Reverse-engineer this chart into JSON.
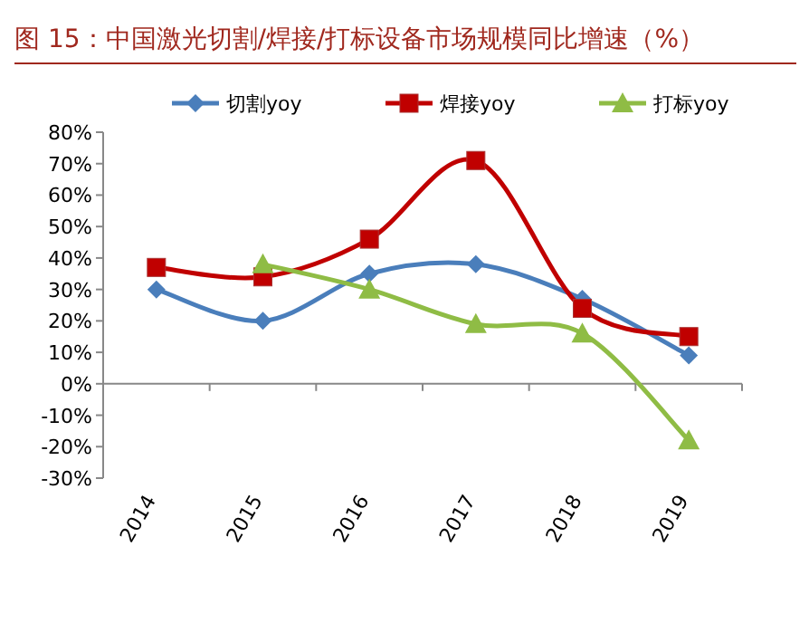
{
  "chart_data": {
    "type": "line",
    "title": "图 15：中国激光切割/焊接/打标设备市场规模同比增速（%）",
    "categories": [
      "2014",
      "2015",
      "2016",
      "2017",
      "2018",
      "2019"
    ],
    "series": [
      {
        "name": "切割yoy",
        "color": "#4a7ebb",
        "marker": "diamond",
        "values": [
          30,
          20,
          35,
          38,
          27,
          9
        ]
      },
      {
        "name": "焊接yoy",
        "color": "#c00000",
        "marker": "square",
        "values": [
          37,
          34,
          46,
          71,
          24,
          15
        ]
      },
      {
        "name": "打标yoy",
        "color": "#8fbc45",
        "marker": "triangle",
        "values": [
          null,
          38,
          30,
          19,
          16,
          -18
        ]
      }
    ],
    "ylim": [
      -30,
      80
    ],
    "yticks": [
      {
        "value": -30,
        "label": "-30%"
      },
      {
        "value": -20,
        "label": "-20%"
      },
      {
        "value": -10,
        "label": "-10%"
      },
      {
        "value": 0,
        "label": "0%"
      },
      {
        "value": 10,
        "label": "10%"
      },
      {
        "value": 20,
        "label": "20%"
      },
      {
        "value": 30,
        "label": "30%"
      },
      {
        "value": 40,
        "label": "40%"
      },
      {
        "value": 50,
        "label": "50%"
      },
      {
        "value": 60,
        "label": "60%"
      },
      {
        "value": 70,
        "label": "70%"
      },
      {
        "value": 80,
        "label": "80%"
      }
    ],
    "legend": "top"
  }
}
